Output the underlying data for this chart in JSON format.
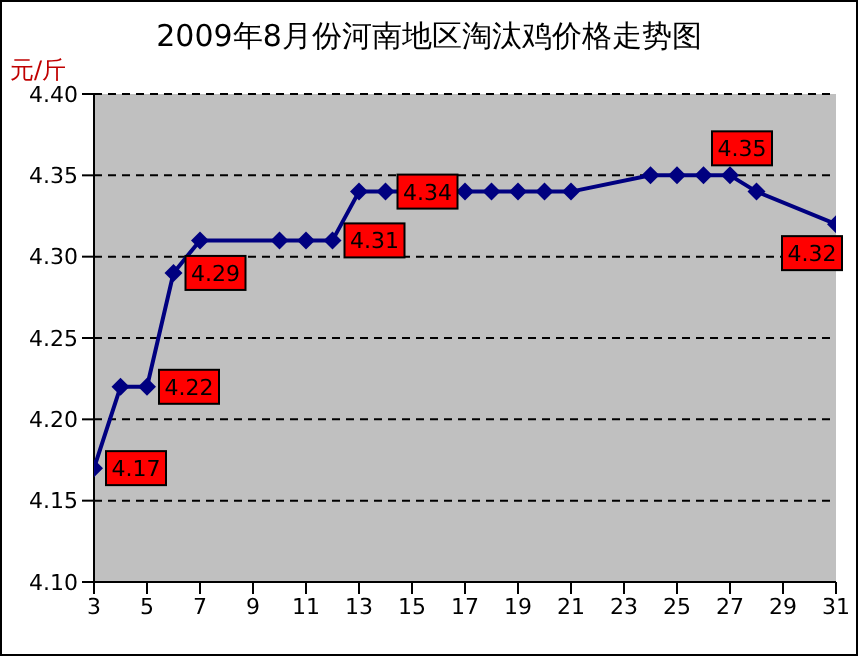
{
  "chart_data": {
    "type": "line",
    "title": "2009年8月份河南地区淘汰鸡价格走势图",
    "ylabel": "元/斤",
    "x": [
      3,
      4,
      5,
      6,
      7,
      10,
      11,
      12,
      13,
      14,
      17,
      18,
      19,
      20,
      21,
      24,
      25,
      26,
      27,
      28,
      31
    ],
    "series": [
      {
        "color": "#000080",
        "values": [
          4.17,
          4.22,
          4.22,
          4.29,
          4.31,
          4.31,
          4.31,
          4.31,
          4.34,
          4.34,
          4.34,
          4.34,
          4.34,
          4.34,
          4.34,
          4.35,
          4.35,
          4.35,
          4.35,
          4.34,
          4.32
        ],
        "value_labels": [
          "4.17",
          null,
          "4.22",
          "4.29",
          null,
          null,
          null,
          "4.31",
          null,
          "4.34",
          null,
          null,
          null,
          null,
          null,
          null,
          null,
          null,
          "4.35",
          null,
          "4.32"
        ]
      }
    ],
    "xlim": [
      3,
      31
    ],
    "xticks": [
      3,
      5,
      7,
      9,
      11,
      13,
      15,
      17,
      19,
      21,
      23,
      25,
      27,
      29,
      31
    ],
    "ylim": [
      4.1,
      4.4
    ],
    "yticks": [
      {
        "value": 4.1,
        "label": "4.10"
      },
      {
        "value": 4.15,
        "label": "4.15"
      },
      {
        "value": 4.2,
        "label": "4.20"
      },
      {
        "value": 4.25,
        "label": "4.25"
      },
      {
        "value": 4.3,
        "label": "4.30"
      },
      {
        "value": 4.35,
        "label": "4.35"
      },
      {
        "value": 4.4,
        "label": "4.40"
      }
    ],
    "grid": "y",
    "marker": "diamond",
    "line_style": "solid",
    "legend": false
  }
}
